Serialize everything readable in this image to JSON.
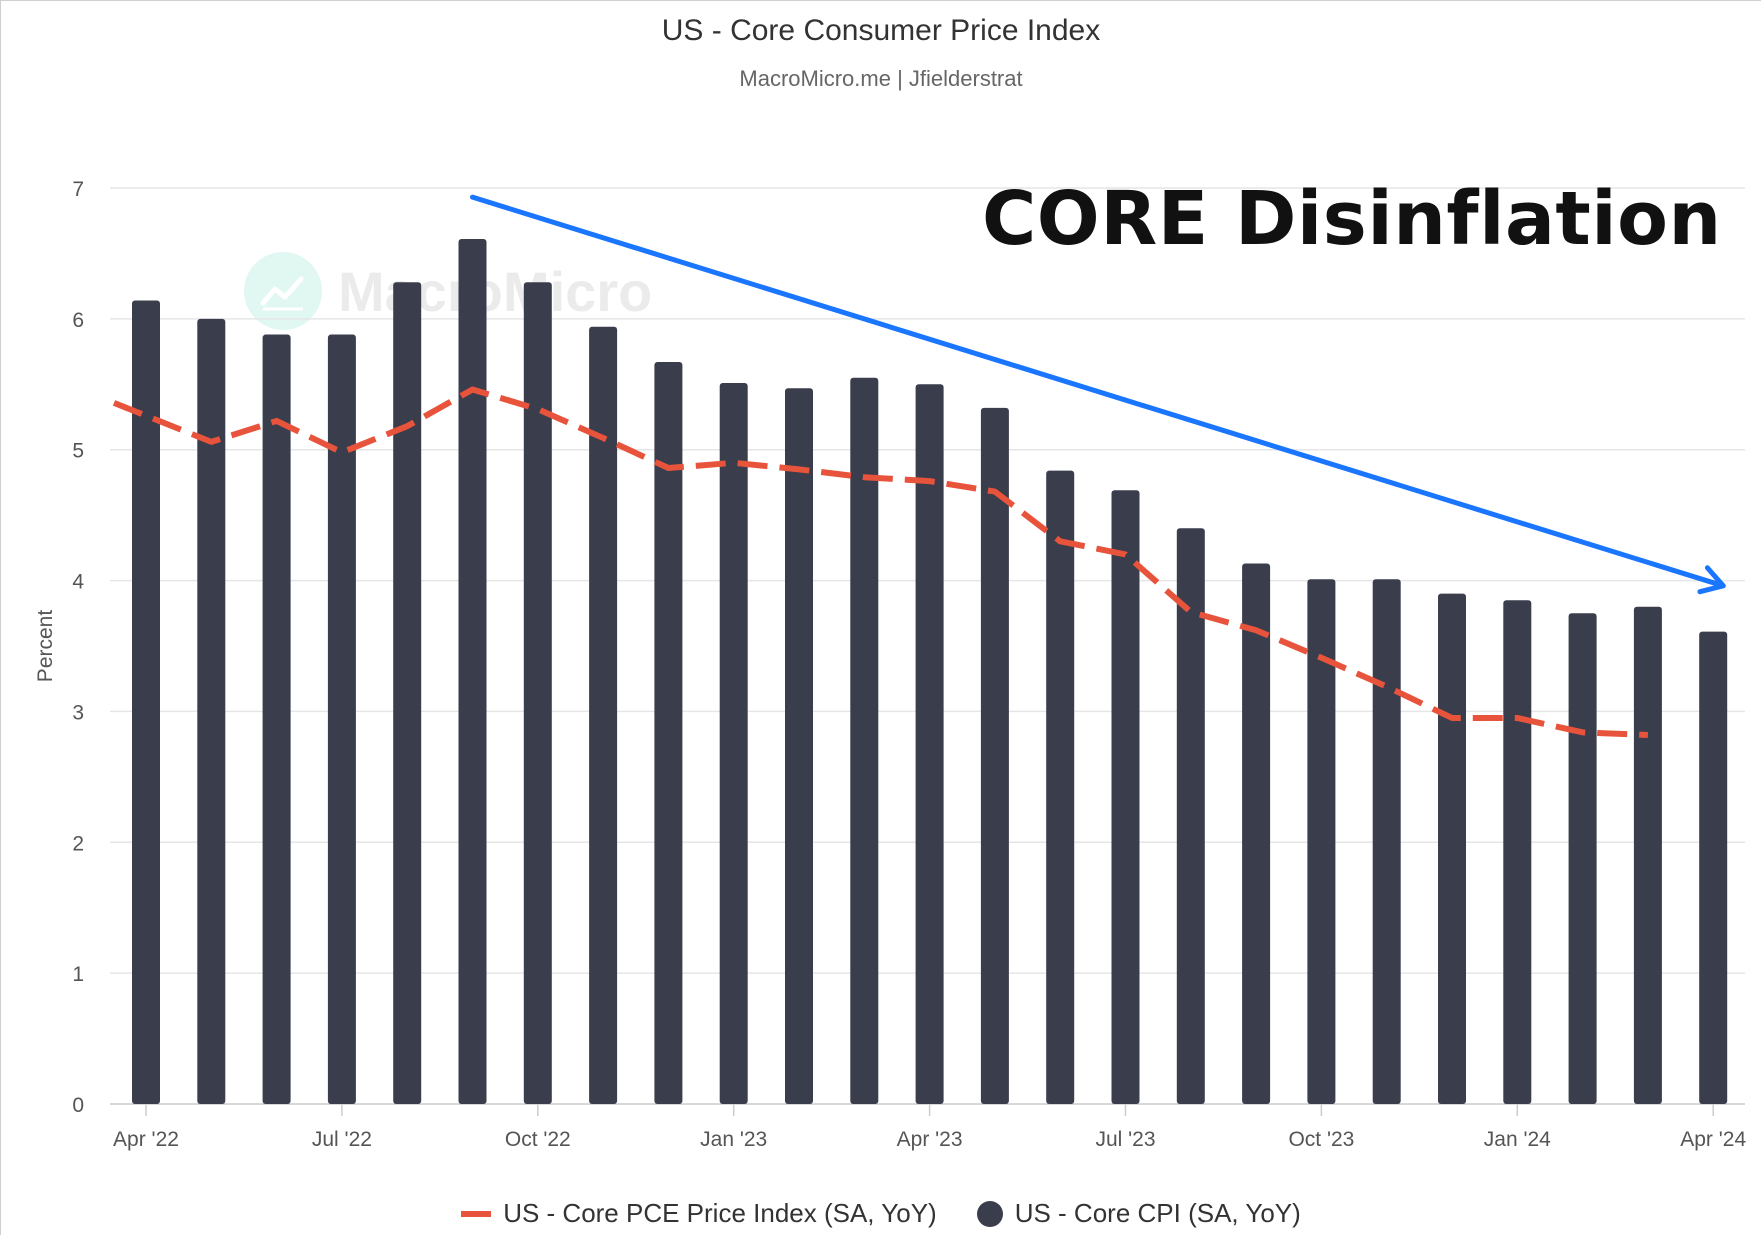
{
  "chart_data": {
    "type": "bar",
    "title": "US - Core Consumer Price Index",
    "subtitle": "MacroMicro.me | Jfielderstrat",
    "ylabel": "Percent",
    "xlabel": "",
    "ylim": [
      0,
      7
    ],
    "yticks": [
      "0",
      "1",
      "2",
      "3",
      "4",
      "5",
      "6",
      "7"
    ],
    "x_tick_labels": [
      {
        "label": "Apr '22",
        "index": 0
      },
      {
        "label": "Jul '22",
        "index": 3
      },
      {
        "label": "Oct '22",
        "index": 6
      },
      {
        "label": "Jan '23",
        "index": 9
      },
      {
        "label": "Apr '23",
        "index": 12
      },
      {
        "label": "Jul '23",
        "index": 15
      },
      {
        "label": "Oct '23",
        "index": 18
      },
      {
        "label": "Jan '24",
        "index": 21
      },
      {
        "label": "Apr '24",
        "index": 24
      }
    ],
    "categories": [
      "Apr 2022",
      "May 2022",
      "Jun 2022",
      "Jul 2022",
      "Aug 2022",
      "Sep 2022",
      "Oct 2022",
      "Nov 2022",
      "Dec 2022",
      "Jan 2023",
      "Feb 2023",
      "Mar 2023",
      "Apr 2023",
      "May 2023",
      "Jun 2023",
      "Jul 2023",
      "Aug 2023",
      "Sep 2023",
      "Oct 2023",
      "Nov 2023",
      "Dec 2023",
      "Jan 2024",
      "Feb 2024",
      "Mar 2024",
      "Apr 2024"
    ],
    "series": [
      {
        "name": "US - Core CPI (SA, YoY)",
        "type": "bar",
        "color": "#3a3d4b",
        "values": [
          6.14,
          6.0,
          5.88,
          5.88,
          6.28,
          6.61,
          6.28,
          5.94,
          5.67,
          5.51,
          5.47,
          5.55,
          5.5,
          5.32,
          4.84,
          4.69,
          4.4,
          4.13,
          4.01,
          4.01,
          3.9,
          3.85,
          3.75,
          3.8,
          3.61
        ]
      },
      {
        "name": "US - Core PCE Price Index (SA, YoY)",
        "type": "line",
        "color": "#e8533c",
        "dashed": true,
        "values": [
          5.26,
          5.06,
          5.22,
          4.98,
          5.18,
          5.46,
          5.31,
          5.09,
          4.86,
          4.9,
          4.85,
          4.79,
          4.76,
          4.68,
          4.3,
          4.2,
          3.76,
          3.62,
          3.41,
          3.19,
          2.95,
          2.95,
          2.84,
          2.82,
          null
        ]
      }
    ],
    "annotations": [
      {
        "type": "arrow",
        "color": "#1a75ff",
        "from": {
          "x": "Sep 2022",
          "y": 6.93
        },
        "to": {
          "x": "Apr 2024",
          "y": 3.96
        }
      },
      {
        "type": "text",
        "text": "CORE Disinflation",
        "color": "#111111"
      }
    ],
    "grid": true,
    "legend": "bottom-center"
  },
  "watermark": {
    "text": "MacroMicro",
    "icon": "chart-trend-icon",
    "color": "#1bc4a4"
  }
}
